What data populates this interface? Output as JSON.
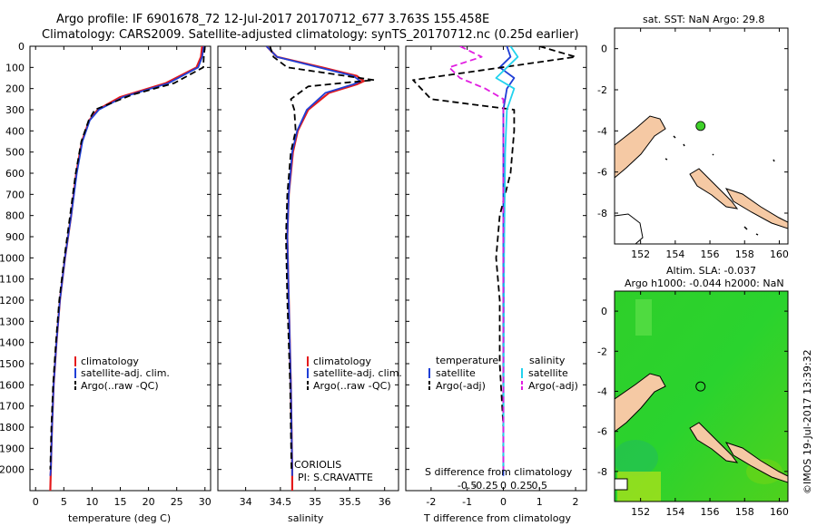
{
  "title_line1": "Argo profile: IF 6901678_72 12-Jul-2017 20170712_677 3.763S 155.458E",
  "title_line2": "Climatology: CARS2009. Satellite-adjusted climatology: synTS_20170712.nc (0.25d earlier)",
  "credit": "©IMOS 19-Jul-2017 13:39:32",
  "depth_ticks": [
    "0",
    "100",
    "200",
    "300",
    "400",
    "500",
    "600",
    "700",
    "800",
    "900",
    "1000",
    "1100",
    "1200",
    "1300",
    "1400",
    "1500",
    "1600",
    "1700",
    "1800",
    "1900",
    "2000"
  ],
  "colors": {
    "climatology": "#e41a1c",
    "satellite": "#1f3fd6",
    "argo": "#000000",
    "sal_satellite": "#22d3ee",
    "sal_argo": "#e11de1",
    "land": "#f5c9a4",
    "sla_green": "#3fd12a"
  },
  "chart_data": [
    {
      "type": "line",
      "id": "temperature",
      "xlabel": "temperature (deg C)",
      "xlim": [
        -1,
        31
      ],
      "ylim": [
        2100,
        0
      ],
      "xticks": [
        0,
        5,
        10,
        15,
        20,
        25,
        30
      ],
      "xtick_labels": [
        "0",
        "5",
        "10",
        "15",
        "20",
        "25",
        "30"
      ],
      "legend_placement": "lower-center",
      "legend": [
        "climatology",
        "satellite-adj. clim.",
        "Argo(..raw -QC)"
      ],
      "series": [
        {
          "name": "climatology",
          "points": [
            [
              29.5,
              0
            ],
            [
              29.3,
              50
            ],
            [
              28.5,
              100
            ],
            [
              23,
              175
            ],
            [
              15,
              240
            ],
            [
              11,
              300
            ],
            [
              9.5,
              350
            ],
            [
              8.2,
              450
            ],
            [
              7.2,
              600
            ],
            [
              6.3,
              800
            ],
            [
              5.2,
              1000
            ],
            [
              4.3,
              1200
            ],
            [
              3.7,
              1400
            ],
            [
              3.2,
              1600
            ],
            [
              2.9,
              1800
            ],
            [
              2.7,
              2000
            ],
            [
              2.6,
              2100
            ]
          ]
        },
        {
          "name": "satellite-adj. clim.",
          "points": [
            [
              29.8,
              0
            ],
            [
              29.5,
              50
            ],
            [
              28.8,
              100
            ],
            [
              23.5,
              175
            ],
            [
              15.5,
              240
            ],
            [
              11.2,
              300
            ],
            [
              9.6,
              350
            ],
            [
              8.3,
              450
            ],
            [
              7.3,
              600
            ],
            [
              6.3,
              800
            ],
            [
              5.2,
              1000
            ],
            [
              4.3,
              1200
            ],
            [
              3.7,
              1400
            ],
            [
              3.2,
              1600
            ],
            [
              2.9,
              1800
            ],
            [
              2.7,
              2000
            ],
            [
              2.6,
              2030
            ]
          ]
        },
        {
          "name": "Argo(..raw -QC)",
          "points": [
            [
              30,
              0
            ],
            [
              29.8,
              50
            ],
            [
              29.7,
              100
            ],
            [
              24.5,
              175
            ],
            [
              17,
              230
            ],
            [
              10.5,
              300
            ],
            [
              9.4,
              350
            ],
            [
              8.1,
              450
            ],
            [
              7.1,
              600
            ],
            [
              6.1,
              800
            ],
            [
              5.1,
              1000
            ],
            [
              4.2,
              1200
            ],
            [
              3.6,
              1400
            ],
            [
              3.1,
              1600
            ],
            [
              2.8,
              1800
            ],
            [
              2.6,
              2000
            ]
          ]
        }
      ]
    },
    {
      "type": "line",
      "id": "salinity",
      "xlabel": "salinity",
      "xlim": [
        33.6,
        36.2
      ],
      "ylim": [
        2100,
        0
      ],
      "xticks": [
        34,
        34.5,
        35,
        35.5,
        36
      ],
      "xtick_labels": [
        "34",
        "34.5",
        "35",
        "35.5",
        "36"
      ],
      "legend_placement": "lower-center",
      "legend": [
        "climatology",
        "satellite-adj. clim.",
        "Argo(..raw -QC)"
      ],
      "annotation": [
        "CORIOLIS",
        "PI: S.CRAVATTE"
      ],
      "series": [
        {
          "name": "climatology",
          "points": [
            [
              34.3,
              0
            ],
            [
              34.45,
              50
            ],
            [
              35.1,
              100
            ],
            [
              35.6,
              140
            ],
            [
              35.7,
              165
            ],
            [
              35.6,
              180
            ],
            [
              35.2,
              220
            ],
            [
              34.9,
              300
            ],
            [
              34.75,
              400
            ],
            [
              34.68,
              500
            ],
            [
              34.62,
              700
            ],
            [
              34.6,
              900
            ],
            [
              34.62,
              1200
            ],
            [
              34.65,
              1600
            ],
            [
              34.67,
              2000
            ],
            [
              34.67,
              2100
            ]
          ]
        },
        {
          "name": "satellite-adj. clim.",
          "points": [
            [
              34.3,
              0
            ],
            [
              34.45,
              50
            ],
            [
              35.05,
              100
            ],
            [
              35.55,
              140
            ],
            [
              35.65,
              165
            ],
            [
              35.55,
              180
            ],
            [
              35.15,
              220
            ],
            [
              34.88,
              300
            ],
            [
              34.74,
              400
            ],
            [
              34.67,
              500
            ],
            [
              34.62,
              700
            ],
            [
              34.6,
              900
            ],
            [
              34.62,
              1200
            ],
            [
              34.65,
              1600
            ],
            [
              34.67,
              2000
            ],
            [
              34.67,
              2030
            ]
          ]
        },
        {
          "name": "Argo(..raw -QC)",
          "points": [
            [
              34.35,
              0
            ],
            [
              34.4,
              50
            ],
            [
              34.6,
              100
            ],
            [
              35.85,
              160
            ],
            [
              35.5,
              170
            ],
            [
              34.9,
              190
            ],
            [
              34.65,
              250
            ],
            [
              34.7,
              300
            ],
            [
              34.72,
              400
            ],
            [
              34.65,
              500
            ],
            [
              34.6,
              700
            ],
            [
              34.58,
              900
            ],
            [
              34.6,
              1200
            ],
            [
              34.64,
              1600
            ],
            [
              34.66,
              2000
            ]
          ]
        }
      ]
    },
    {
      "type": "line",
      "id": "difference",
      "xlabel": "T difference from climatology",
      "xlabel2": "S difference from climatology",
      "xlim": [
        -2.7,
        2.3
      ],
      "ylim": [
        2100,
        0
      ],
      "xticks": [
        -2,
        -1,
        0,
        1,
        2
      ],
      "xtick_labels": [
        "-2",
        "-1",
        "0",
        "1",
        "2"
      ],
      "sticks_values": [
        -1.0,
        -0.5,
        0.0,
        0.5,
        1.0
      ],
      "sticks": [
        "-0.5",
        "-0.25",
        "0",
        "0.25",
        "0.5"
      ],
      "legend_placement": "lower-center",
      "legend_headers": [
        "temperature",
        "salinity"
      ],
      "legend": [
        "satellite",
        "Argo(-adj)",
        "satellite",
        "Argo(-adj)"
      ],
      "series": [
        {
          "name": "satellite",
          "points": [
            [
              0.1,
              0
            ],
            [
              0.2,
              50
            ],
            [
              -0.1,
              100
            ],
            [
              0.3,
              150
            ],
            [
              0.1,
              200
            ],
            [
              0,
              300
            ],
            [
              0,
              500
            ],
            [
              0,
              800
            ],
            [
              0,
              1200
            ],
            [
              0,
              1600
            ],
            [
              0,
              2000
            ],
            [
              0,
              2030
            ]
          ]
        },
        {
          "name": "Argo(-adj)",
          "points": [
            [
              1,
              0
            ],
            [
              2,
              50
            ],
            [
              -2.5,
              160
            ],
            [
              -2,
              250
            ],
            [
              0.3,
              300
            ],
            [
              0.3,
              400
            ],
            [
              0.2,
              600
            ],
            [
              -0.1,
              800
            ],
            [
              -0.2,
              1000
            ],
            [
              -0.1,
              1200
            ],
            [
              -0.1,
              1500
            ],
            [
              0,
              1800
            ],
            [
              0,
              2000
            ]
          ]
        },
        {
          "name": "satellite",
          "points": [
            [
              0.2,
              0
            ],
            [
              0.4,
              50
            ],
            [
              -0.2,
              150
            ],
            [
              0.3,
              200
            ],
            [
              0.1,
              300
            ],
            [
              0.05,
              500
            ],
            [
              0.02,
              1000
            ],
            [
              0,
              2000
            ]
          ]
        },
        {
          "name": "Argo(-adj)",
          "points": [
            [
              -1.2,
              0
            ],
            [
              -0.6,
              50
            ],
            [
              -1.5,
              100
            ],
            [
              -1.2,
              150
            ],
            [
              -0.5,
              200
            ],
            [
              0,
              250
            ],
            [
              0,
              300
            ],
            [
              0,
              2000
            ]
          ]
        }
      ]
    },
    {
      "type": "scatter",
      "id": "sst-map",
      "title": "sat. SST: NaN  Argo: 29.8",
      "xlim": [
        150.5,
        160.5
      ],
      "ylim": [
        -9.5,
        1
      ],
      "xticks": [
        152,
        154,
        156,
        158,
        160
      ],
      "yticks": [
        0,
        -2,
        -4,
        -6,
        -8
      ],
      "xtick_labels": [
        "152",
        "154",
        "156",
        "158",
        "160"
      ],
      "ytick_labels": [
        "0",
        "-2",
        "-4",
        "-6",
        "-8"
      ],
      "points": [
        [
          155.46,
          -3.76
        ]
      ]
    },
    {
      "type": "heatmap",
      "id": "sla-map",
      "title_line1": "Altim. SLA: -0.037",
      "title_line2": "Argo h1000: -0.044 h2000: NaN",
      "xlim": [
        150.5,
        160.5
      ],
      "ylim": [
        -9.5,
        1
      ],
      "xticks": [
        152,
        154,
        156,
        158,
        160
      ],
      "yticks": [
        0,
        -2,
        -4,
        -6,
        -8
      ],
      "xtick_labels": [
        "152",
        "154",
        "156",
        "158",
        "160"
      ],
      "ytick_labels": [
        "0",
        "-2",
        "-4",
        "-6",
        "-8"
      ],
      "points": [
        [
          155.46,
          -3.76
        ]
      ]
    }
  ]
}
